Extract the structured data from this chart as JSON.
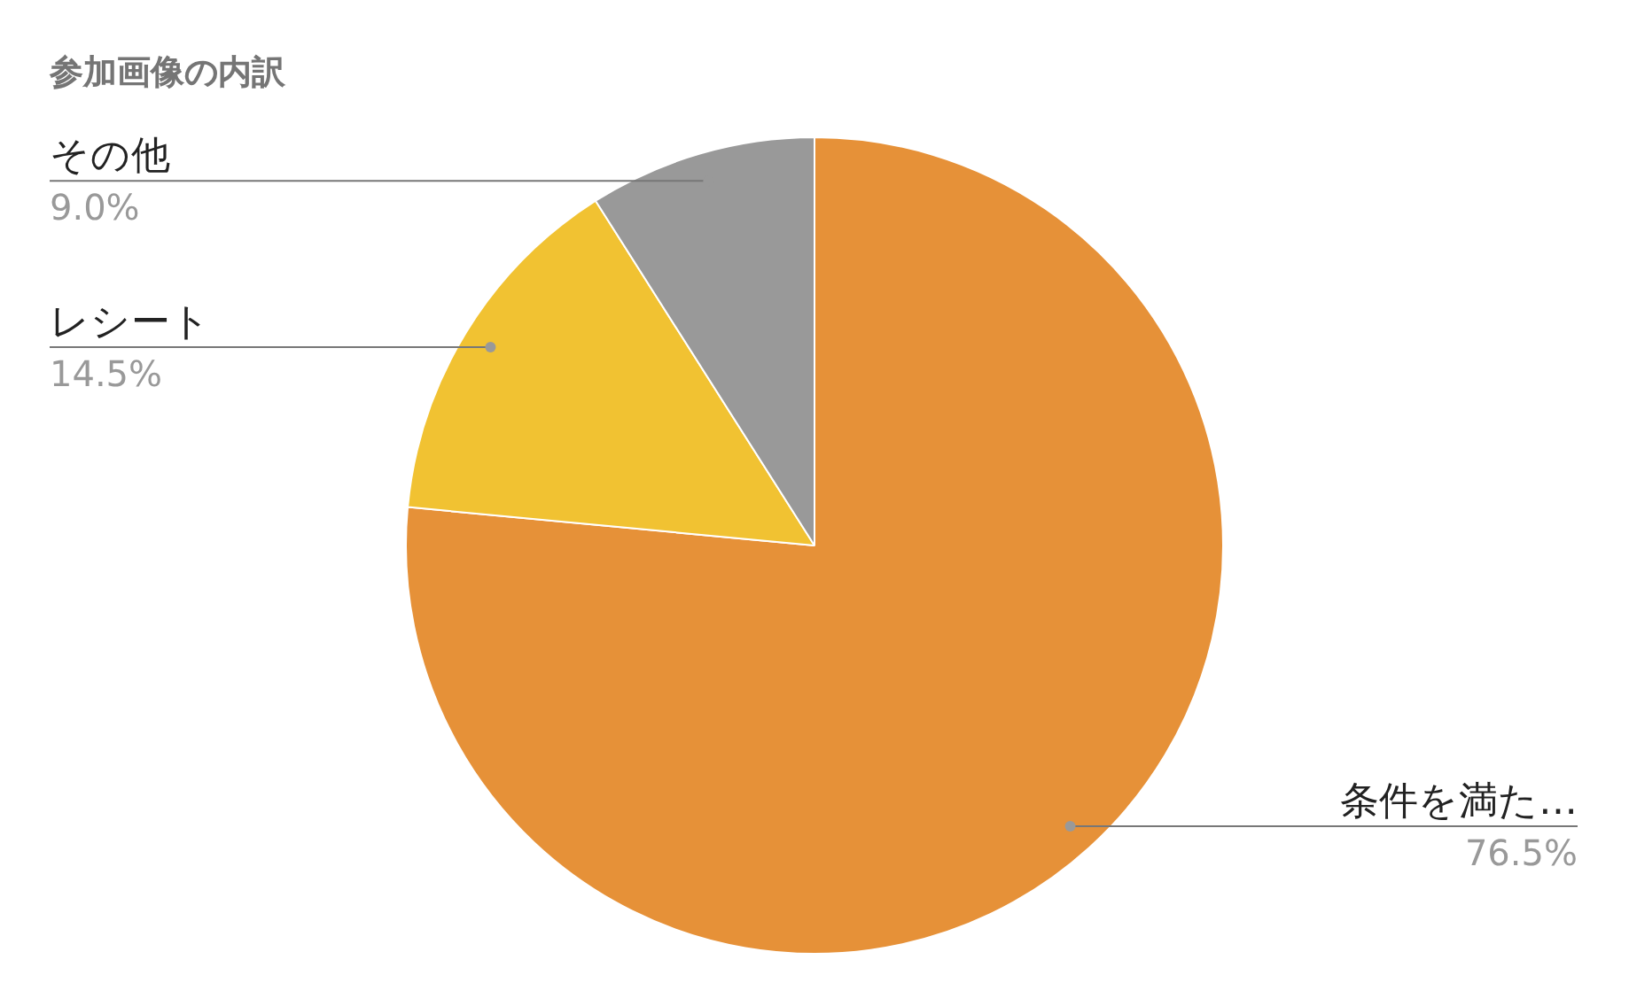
{
  "chart_data": {
    "type": "pie",
    "title": "参加画像の内訳",
    "categories": [
      "条件を満た…",
      "レシート",
      "その他"
    ],
    "values": [
      76.5,
      14.5,
      9.0
    ],
    "value_labels": [
      "76.5%",
      "14.5%",
      "9.0%"
    ],
    "colors": [
      "#e69138",
      "#f1c232",
      "#999999"
    ],
    "legend": false
  }
}
